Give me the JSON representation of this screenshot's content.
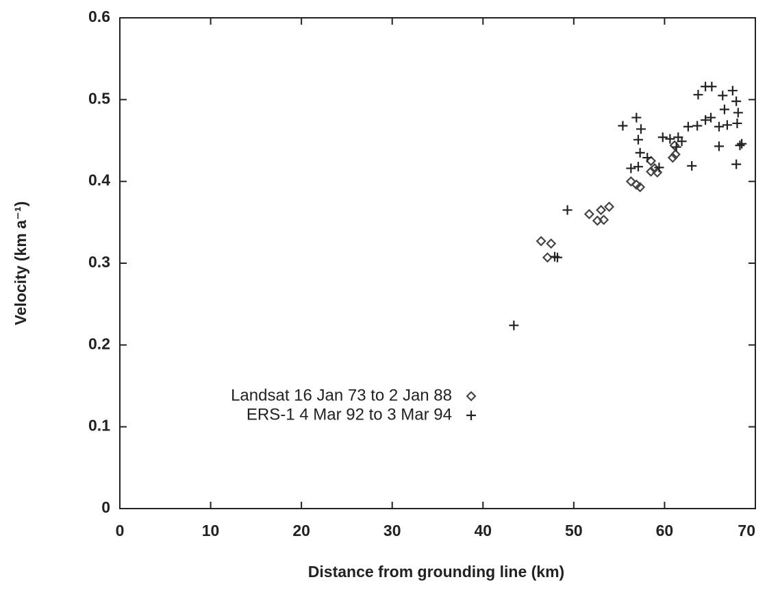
{
  "chart_data": {
    "type": "scatter",
    "xlabel": "Distance from grounding line (km)",
    "ylabel": "Velocity (km a⁻¹)",
    "xlim": [
      0,
      70
    ],
    "ylim": [
      0,
      0.6
    ],
    "xticks": [
      0,
      10,
      20,
      30,
      40,
      50,
      60,
      70
    ],
    "yticks": [
      0,
      0.1,
      0.2,
      0.3,
      0.4,
      0.5,
      0.6
    ],
    "legend": "lower left",
    "series": [
      {
        "name": "Landsat 16 Jan 73 to 2 Jan 88",
        "color": "#444444",
        "marker": "diamond",
        "x": [
          46.4,
          47.5,
          47.1,
          51.7,
          52.6,
          53.0,
          53.3,
          53.9,
          56.3,
          56.9,
          57.3,
          58.5,
          58.9,
          59.2,
          58.5,
          61.1,
          61.2,
          60.9
        ],
        "values": [
          0.327,
          0.324,
          0.307,
          0.36,
          0.352,
          0.365,
          0.353,
          0.369,
          0.4,
          0.396,
          0.393,
          0.425,
          0.416,
          0.411,
          0.412,
          0.444,
          0.433,
          0.429
        ]
      },
      {
        "name": "ERS-1 4 Mar 92 to 3 Mar 94",
        "color": "#222222",
        "marker": "plus",
        "x": [
          43.4,
          49.3,
          47.9,
          48.2,
          55.4,
          56.9,
          57.4,
          57.1,
          56.3,
          57.3,
          57.1,
          58.1,
          59.4,
          59.8,
          60.6,
          61.5,
          61.9,
          61.3,
          63.0,
          62.6,
          63.6,
          63.7,
          64.5,
          65.2,
          64.5,
          65.1,
          66.4,
          66.6,
          66.0,
          66.9,
          66.0,
          67.5,
          67.9,
          68.1,
          68.0,
          68.3,
          67.9,
          68.5
        ],
        "values": [
          0.224,
          0.365,
          0.308,
          0.307,
          0.468,
          0.478,
          0.464,
          0.451,
          0.416,
          0.435,
          0.418,
          0.429,
          0.417,
          0.454,
          0.452,
          0.454,
          0.449,
          0.442,
          0.419,
          0.467,
          0.468,
          0.506,
          0.516,
          0.516,
          0.475,
          0.478,
          0.505,
          0.488,
          0.467,
          0.469,
          0.443,
          0.511,
          0.498,
          0.484,
          0.471,
          0.444,
          0.421,
          0.446
        ]
      }
    ]
  }
}
